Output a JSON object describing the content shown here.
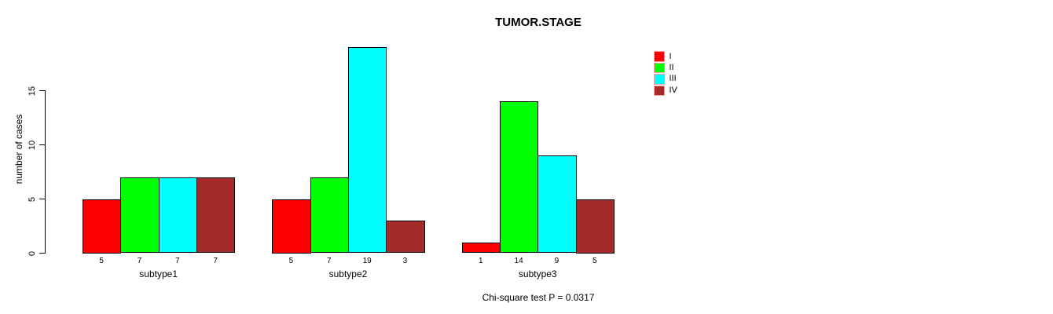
{
  "chart_data": {
    "type": "bar",
    "title": "TUMOR.STAGE",
    "ylabel": "number of cases",
    "xlabel": "",
    "categories": [
      "subtype1",
      "subtype2",
      "subtype3"
    ],
    "series": [
      {
        "name": "I",
        "color": "#ff0000",
        "values": [
          5,
          5,
          1
        ]
      },
      {
        "name": "II",
        "color": "#00ff00",
        "values": [
          7,
          7,
          14
        ]
      },
      {
        "name": "III",
        "color": "#00ffff",
        "values": [
          7,
          19,
          9
        ]
      },
      {
        "name": "IV",
        "color": "#a52a2a",
        "values": [
          7,
          3,
          5
        ]
      }
    ],
    "yticks": [
      0,
      5,
      10,
      15
    ],
    "ylim": [
      0,
      19
    ],
    "grid": false,
    "bar_value_labels_shown": true,
    "bar_border_color": "#000000",
    "legend": {
      "position": "top-right",
      "entries": [
        "I",
        "II",
        "III",
        "IV"
      ],
      "swatch_border_color": "#ff9e9e"
    },
    "annotation": "Chi-square test P = 0.0317"
  }
}
